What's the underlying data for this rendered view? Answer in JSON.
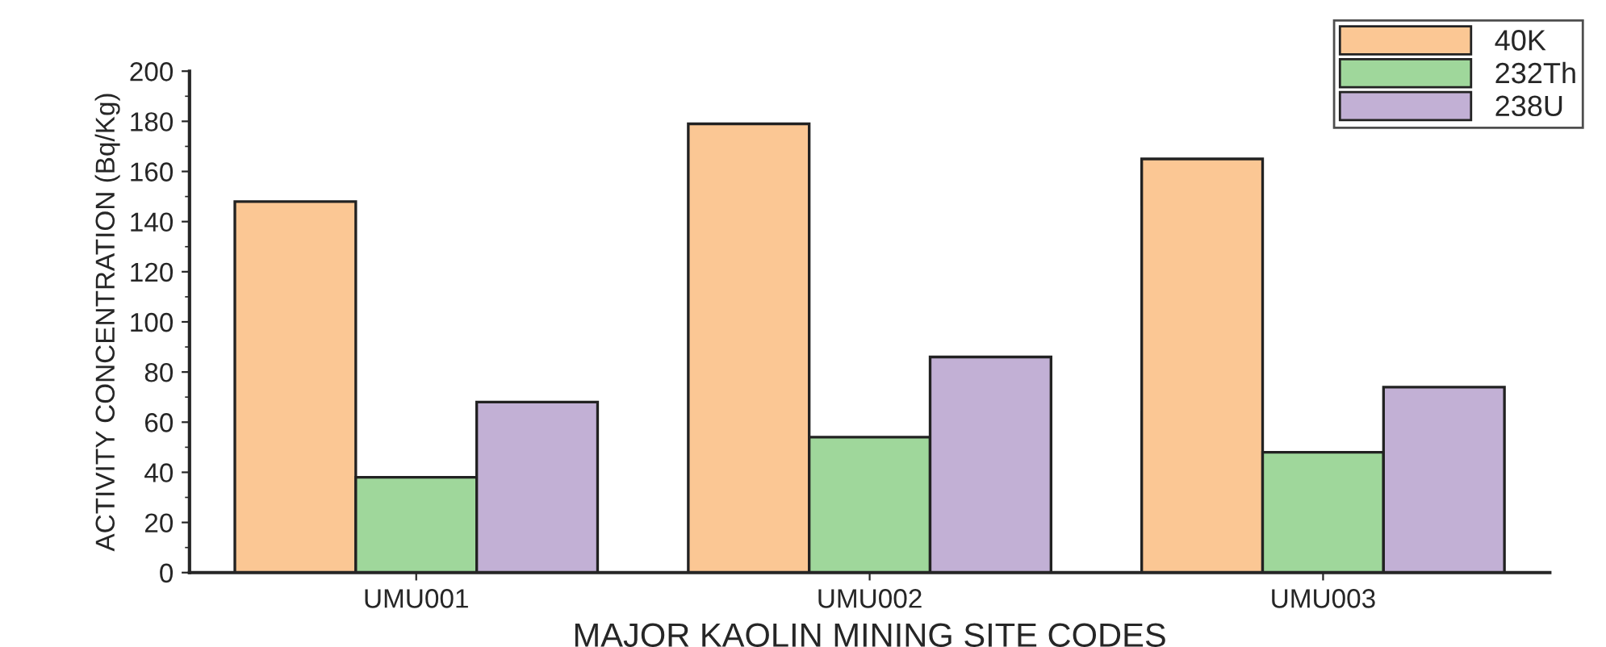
{
  "chart_data": {
    "type": "bar",
    "xlabel": "MAJOR KAOLIN MINING SITE CODES",
    "ylabel": "ACTIVITY CONCENTRATION (Bq/Kg)",
    "categories": [
      "UMU001",
      "UMU002",
      "UMU003"
    ],
    "series": [
      {
        "name": "40K",
        "color": "#fbc794",
        "values": [
          148,
          179,
          165
        ]
      },
      {
        "name": "232Th",
        "color": "#9fd79b",
        "values": [
          38,
          54,
          48
        ]
      },
      {
        "name": "238U",
        "color": "#c2b0d5",
        "values": [
          68,
          86,
          74
        ]
      }
    ],
    "ylim": [
      0,
      200
    ],
    "yticks": [
      0,
      20,
      40,
      60,
      80,
      100,
      120,
      140,
      160,
      180,
      200
    ],
    "grid": false,
    "legend": "top right"
  }
}
